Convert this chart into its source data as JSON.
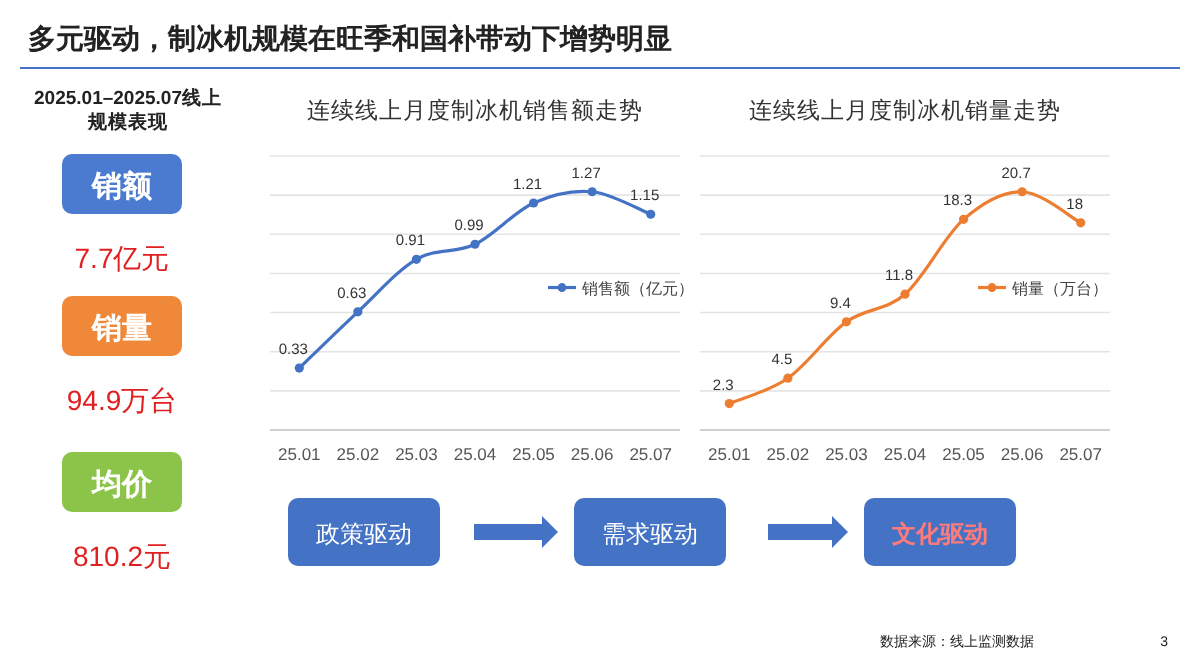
{
  "chart_data": [
    {
      "type": "other",
      "title": "多元驱动，制冰机规模在旺季和国补带动下增势明显",
      "annotations": [
        "2025.01–2025.07线上",
        "规模表现",
        "销额",
        "7.7亿元",
        "销量",
        "94.9万台",
        "均价",
        "810.2元"
      ]
    },
    {
      "type": "line",
      "title": "连续线上月度制冰机销售额走势",
      "categories": [
        "25.01",
        "25.02",
        "25.03",
        "25.04",
        "25.05",
        "25.06",
        "25.07"
      ],
      "series": [
        {
          "name": "销售额（亿元）",
          "color": "#4472c4",
          "values": [
            0.33,
            0.63,
            0.91,
            0.99,
            1.21,
            1.27,
            1.15
          ]
        }
      ],
      "data_labels": true,
      "grid": "y",
      "legend": "right",
      "marker": "circle"
    },
    {
      "type": "line",
      "title": "连续线上月度制冰机销量走势",
      "categories": [
        "25.01",
        "25.02",
        "25.03",
        "25.04",
        "25.05",
        "25.06",
        "25.07"
      ],
      "series": [
        {
          "name": "销量（万台）",
          "color": "#ed7d31",
          "values": [
            2.3,
            4.5,
            9.4,
            11.8,
            18.3,
            20.7,
            18
          ]
        }
      ],
      "data_labels": true,
      "grid": "y",
      "legend": "right",
      "marker": "circle"
    },
    {
      "type": "other",
      "annotations": [
        "政策驱动",
        "需求驱动",
        "文化驱动",
        "数据来源：线上监测数据",
        "3"
      ]
    }
  ]
}
